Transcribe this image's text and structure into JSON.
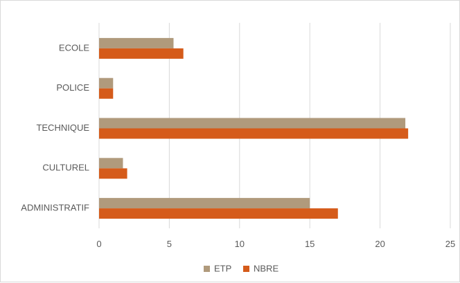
{
  "chart_data": {
    "type": "bar",
    "orientation": "horizontal",
    "title": "",
    "xlabel": "",
    "ylabel": "",
    "categories": [
      "ECOLE",
      "POLICE",
      "TECHNIQUE",
      "CULTUREL",
      "ADMINISTRATIF"
    ],
    "series": [
      {
        "name": "ETP",
        "color": "#b09a7c",
        "values": [
          5.3,
          1.0,
          21.8,
          1.7,
          15.0
        ]
      },
      {
        "name": "NBRE",
        "color": "#d55b1a",
        "values": [
          6,
          1,
          22,
          2,
          17
        ]
      }
    ],
    "xlim": [
      0,
      25
    ],
    "xticks": [
      0,
      5,
      10,
      15,
      20,
      25
    ],
    "grid": "vertical",
    "legend_position": "bottom",
    "colors": {
      "gridline": "#d9d9d9",
      "axis_text": "#595959",
      "border": "#d9d9d9"
    }
  }
}
